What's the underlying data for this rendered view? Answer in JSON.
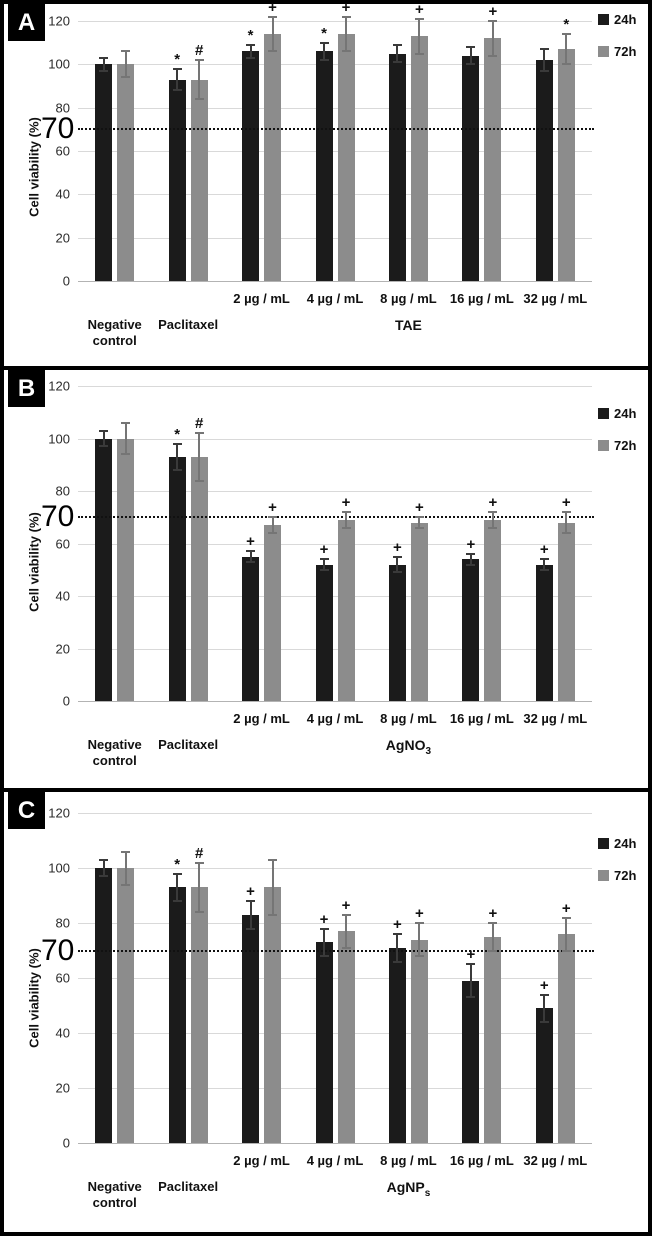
{
  "figure_title": "Cell viability bar charts, panels A, B, C",
  "colors": {
    "bar_24h": "#1b1b1b",
    "bar_72h": "#8c8c8c",
    "error_24h": "#3a3a3a",
    "error_72h": "#757575",
    "gridline": "#d9d9d9",
    "zero_line": "#b3b3b3",
    "threshold_line": "#111111",
    "panel_label_bg": "#000000",
    "panel_label_text": "#ffffff"
  },
  "chart_data": [
    {
      "type": "bar",
      "panel_letter": "A",
      "ylabel": "Cell viability (%)",
      "ylim": [
        0,
        120
      ],
      "yticks": [
        0,
        20,
        40,
        60,
        80,
        100,
        120
      ],
      "threshold_line": 70,
      "threshold_label": "70",
      "grid": true,
      "legend_position": "top-right",
      "legend": [
        "24h",
        "72h"
      ],
      "categories": [
        "Negative control",
        "Paclitaxel",
        "2 µg / mL",
        "4 µg / mL",
        "8 µg / mL",
        "16 µg / mL",
        "32 µg / mL"
      ],
      "group_label": "TAE",
      "group_label_sub": "",
      "series": [
        {
          "name": "24h",
          "values": [
            100,
            93,
            106,
            106,
            105,
            104,
            102
          ],
          "errors": [
            3,
            5,
            3,
            4,
            4,
            4,
            5
          ],
          "marks": [
            "",
            "*",
            "*",
            "*",
            "",
            "",
            ""
          ]
        },
        {
          "name": "72h",
          "values": [
            100,
            93,
            114,
            114,
            113,
            112,
            107
          ],
          "errors": [
            6,
            9,
            8,
            8,
            8,
            8,
            7
          ],
          "marks": [
            "",
            "#",
            "+",
            "+",
            "+",
            "+",
            "*"
          ]
        }
      ]
    },
    {
      "type": "bar",
      "panel_letter": "B",
      "ylabel": "Cell viability (%)",
      "ylim": [
        0,
        120
      ],
      "yticks": [
        0,
        20,
        40,
        60,
        80,
        100,
        120
      ],
      "threshold_line": 70,
      "threshold_label": "70",
      "grid": true,
      "legend_position": "top-right",
      "legend": [
        "24h",
        "72h"
      ],
      "categories": [
        "Negative control",
        "Paclitaxel",
        "2 µg / mL",
        "4 µg / mL",
        "8 µg / mL",
        "16 µg / mL",
        "32 µg / mL"
      ],
      "group_label": "AgNO",
      "group_label_sub": "3",
      "series": [
        {
          "name": "24h",
          "values": [
            100,
            93,
            55,
            52,
            52,
            54,
            52
          ],
          "errors": [
            3,
            5,
            2,
            2,
            3,
            2,
            2
          ],
          "marks": [
            "",
            "*",
            "+",
            "+",
            "+",
            "+",
            "+"
          ]
        },
        {
          "name": "72h",
          "values": [
            100,
            93,
            67,
            69,
            68,
            69,
            68
          ],
          "errors": [
            6,
            9,
            3,
            3,
            2,
            3,
            4
          ],
          "marks": [
            "",
            "#",
            "+",
            "+",
            "+",
            "+",
            "+"
          ]
        }
      ]
    },
    {
      "type": "bar",
      "panel_letter": "C",
      "ylabel": "Cell viability (%)",
      "ylim": [
        0,
        120
      ],
      "yticks": [
        0,
        20,
        40,
        60,
        80,
        100,
        120
      ],
      "threshold_line": 70,
      "threshold_label": "70",
      "grid": true,
      "legend_position": "top-right",
      "legend": [
        "24h",
        "72h"
      ],
      "categories": [
        "Negative control",
        "Paclitaxel",
        "2 µg / mL",
        "4 µg / mL",
        "8 µg / mL",
        "16 µg / mL",
        "32 µg / mL"
      ],
      "group_label": "AgNP",
      "group_label_sub": "s",
      "series": [
        {
          "name": "24h",
          "values": [
            100,
            93,
            83,
            73,
            71,
            59,
            49
          ],
          "errors": [
            3,
            5,
            5,
            5,
            5,
            6,
            5
          ],
          "marks": [
            "",
            "*",
            "+",
            "+",
            "+",
            "+",
            "+"
          ]
        },
        {
          "name": "72h",
          "values": [
            100,
            93,
            93,
            77,
            74,
            75,
            76
          ],
          "errors": [
            6,
            9,
            10,
            6,
            6,
            5,
            6
          ],
          "marks": [
            "",
            "#",
            "",
            "+",
            "+",
            "+",
            "+"
          ]
        }
      ]
    }
  ]
}
